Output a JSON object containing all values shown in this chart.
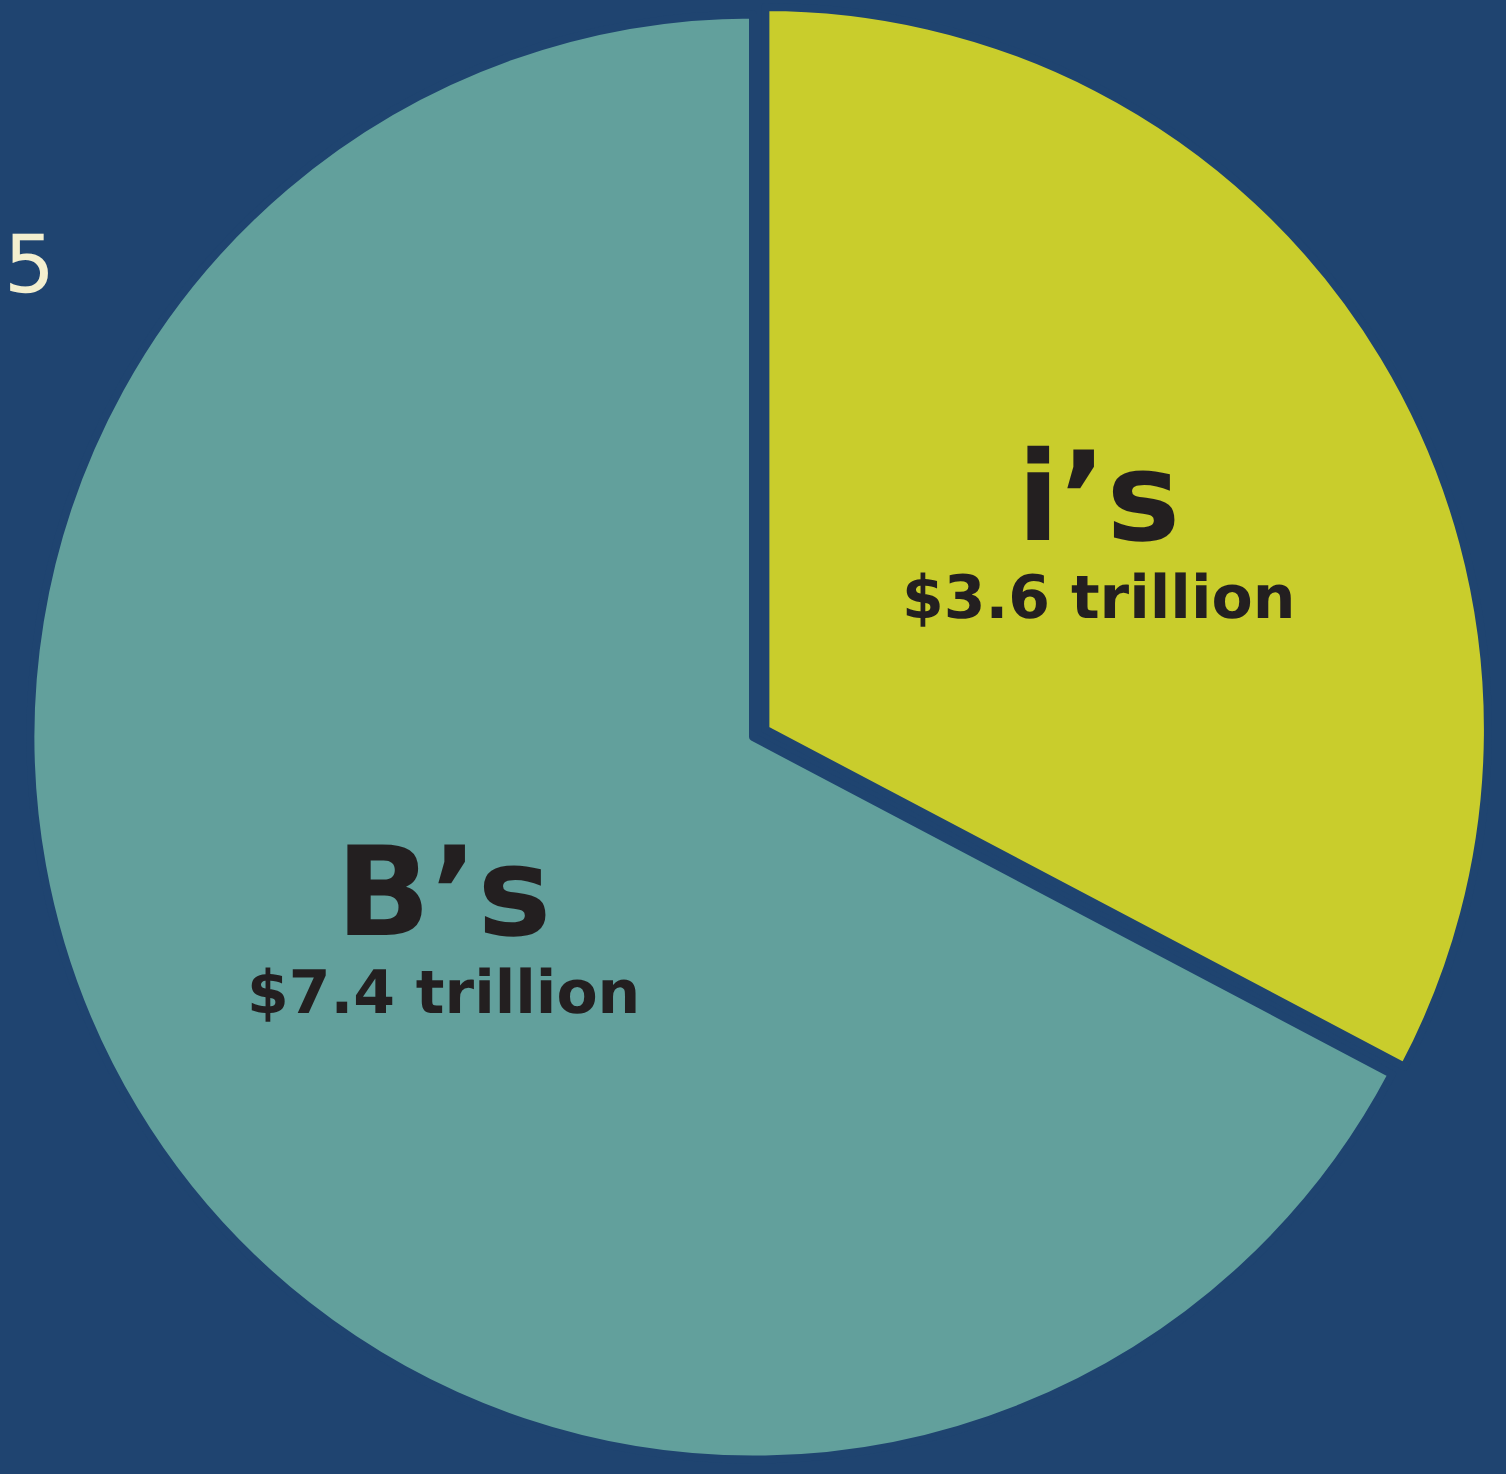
{
  "chart_data": {
    "type": "pie",
    "categories": [
      "i’s",
      "B’s"
    ],
    "values": [
      3.6,
      7.4
    ],
    "value_labels": [
      "$3.6 trillion",
      "$7.4 trillion"
    ],
    "colors": [
      "#c9cd2c",
      "#62a09c"
    ],
    "annotations": [
      "5"
    ],
    "legend": false
  }
}
